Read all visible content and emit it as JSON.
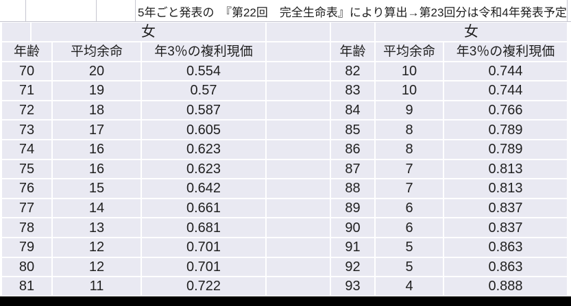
{
  "caption": "5年ごと発表の　『第22回　完全生命表』により算出→第23回分は令和4年発表予定",
  "tables": [
    {
      "gender": "女",
      "columns": [
        "年齢",
        "平均余命",
        "年3％の複利現価"
      ],
      "rows": [
        [
          "70",
          "20",
          "0.554"
        ],
        [
          "71",
          "19",
          "0.57"
        ],
        [
          "72",
          "18",
          "0.587"
        ],
        [
          "73",
          "17",
          "0.605"
        ],
        [
          "74",
          "16",
          "0.623"
        ],
        [
          "75",
          "16",
          "0.623"
        ],
        [
          "76",
          "15",
          "0.642"
        ],
        [
          "77",
          "14",
          "0.661"
        ],
        [
          "78",
          "13",
          "0.681"
        ],
        [
          "79",
          "12",
          "0.701"
        ],
        [
          "80",
          "12",
          "0.701"
        ],
        [
          "81",
          "11",
          "0.722"
        ]
      ]
    },
    {
      "gender": "女",
      "columns": [
        "年齢",
        "平均余命",
        "年3％の複利現価"
      ],
      "rows": [
        [
          "82",
          "10",
          "0.744"
        ],
        [
          "83",
          "10",
          "0.744"
        ],
        [
          "84",
          "9",
          "0.766"
        ],
        [
          "85",
          "8",
          "0.789"
        ],
        [
          "86",
          "8",
          "0.789"
        ],
        [
          "87",
          "7",
          "0.813"
        ],
        [
          "88",
          "7",
          "0.813"
        ],
        [
          "89",
          "6",
          "0.837"
        ],
        [
          "90",
          "6",
          "0.837"
        ],
        [
          "91",
          "5",
          "0.863"
        ],
        [
          "92",
          "5",
          "0.863"
        ],
        [
          "93",
          "4",
          "0.888"
        ]
      ]
    }
  ],
  "colors": {
    "cell_fill": "#e9e9f2",
    "grid_separator": "#ffffff",
    "caption_gridline": "#c6c6d0",
    "text": "#1f1f1f",
    "bottom_bar": "#000000"
  }
}
